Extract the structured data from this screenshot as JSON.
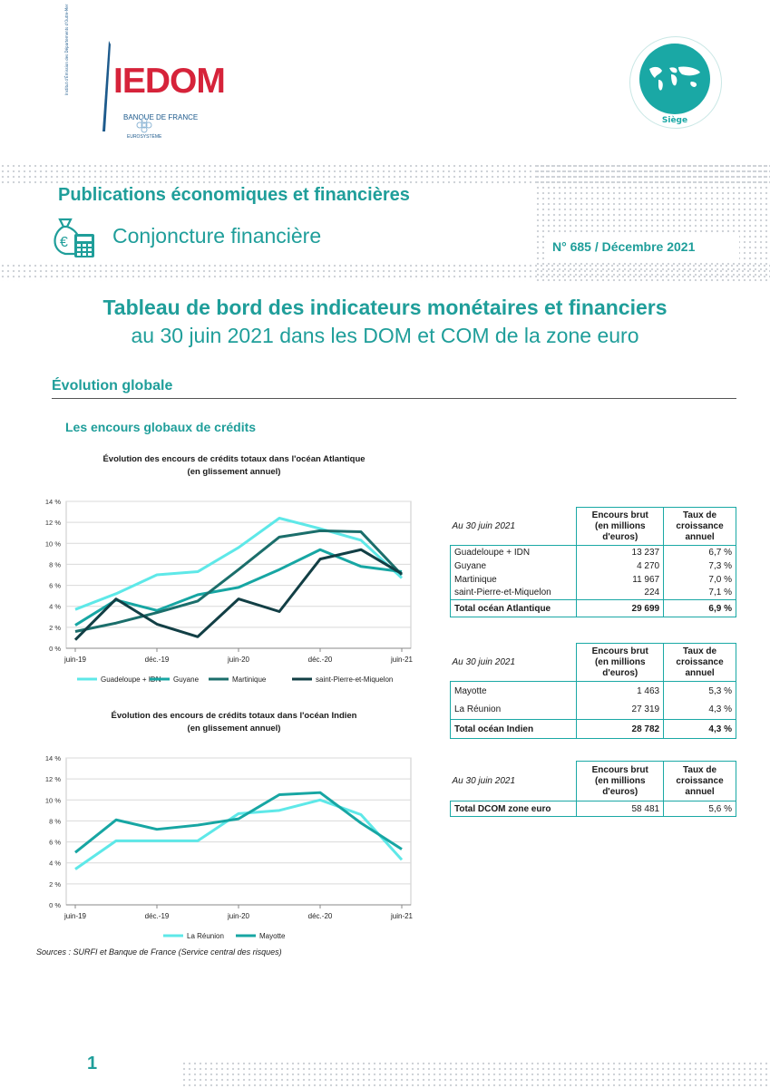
{
  "logo": {
    "name": "IEDOM",
    "tagline": "BANQUE DE FRANCE",
    "sub": "EUROSYSTÈME",
    "vertical": "Institut d'Émission des Départements d'Outre-Mer"
  },
  "seal": {
    "label": "Siège"
  },
  "header": {
    "publication": "Publications économiques et financières",
    "series": "Conjoncture financière",
    "issue": "N° 685 / Décembre 2021"
  },
  "title": {
    "main": "Tableau de bord des indicateurs monétaires et financiers",
    "sub": "au 30 juin 2021 dans les DOM et COM de la zone euro"
  },
  "section": {
    "heading": "Évolution globale",
    "subheading": "Les encours globaux de crédits"
  },
  "colors": {
    "teal": "#1f9e9a",
    "light_teal": "#5ee8e8",
    "mid_teal": "#17a6a3",
    "dark_teal": "#1b6e6b",
    "navy_teal": "#123f45"
  },
  "chart_data": [
    {
      "type": "line",
      "title": "Évolution des encours de crédits totaux dans l'océan Atlantique",
      "subtitle": "(en glissement annuel)",
      "x": [
        "juin-19",
        "sept.-19",
        "déc.-19",
        "mars-20",
        "juin-20",
        "sept.-20",
        "déc.-20",
        "mars-21",
        "juin-21"
      ],
      "x_tick_labels": [
        "juin-19",
        "déc.-19",
        "juin-20",
        "déc.-20",
        "juin-21"
      ],
      "y_tick_labels": [
        "0 %",
        "2 %",
        "4 %",
        "6 %",
        "8 %",
        "10 %",
        "12 %",
        "14 %"
      ],
      "ylim": [
        0,
        14
      ],
      "grid": true,
      "legend_position": "bottom",
      "series": [
        {
          "name": "Guadeloupe  + IDN",
          "values": [
            3.7,
            5.2,
            7.0,
            7.3,
            9.6,
            12.4,
            11.4,
            10.3,
            6.7
          ]
        },
        {
          "name": "Guyane",
          "values": [
            2.2,
            4.6,
            3.6,
            5.1,
            5.8,
            7.5,
            9.4,
            7.8,
            7.3
          ]
        },
        {
          "name": "Martinique",
          "values": [
            1.6,
            2.4,
            3.4,
            4.5,
            7.5,
            10.6,
            11.2,
            11.1,
            7.0
          ]
        },
        {
          "name": "saint-Pierre-et-Miquelon",
          "values": [
            0.8,
            4.7,
            2.3,
            1.1,
            4.7,
            3.5,
            8.5,
            9.4,
            7.1
          ]
        }
      ]
    },
    {
      "type": "line",
      "title": "Évolution des encours de crédits totaux dans l'océan Indien",
      "subtitle": "(en glissement annuel)",
      "x": [
        "juin-19",
        "sept.-19",
        "déc.-19",
        "mars-20",
        "juin-20",
        "sept.-20",
        "déc.-20",
        "mars-21",
        "juin-21"
      ],
      "x_tick_labels": [
        "juin-19",
        "déc.-19",
        "juin-20",
        "déc.-20",
        "juin-21"
      ],
      "y_tick_labels": [
        "0 %",
        "2 %",
        "4 %",
        "6 %",
        "8 %",
        "10 %",
        "12 %",
        "14 %"
      ],
      "ylim": [
        0,
        14
      ],
      "grid": true,
      "legend_position": "bottom",
      "series": [
        {
          "name": "La Réunion",
          "values": [
            3.4,
            6.1,
            6.1,
            6.1,
            8.7,
            9.0,
            10.0,
            8.6,
            4.3
          ]
        },
        {
          "name": "Mayotte",
          "values": [
            5.0,
            8.1,
            7.2,
            7.6,
            8.2,
            10.5,
            10.7,
            7.8,
            5.3
          ]
        }
      ]
    },
    {
      "type": "table",
      "date_label": "Au 30 juin 2021",
      "col1": "Encours brut (en millions d'euros)",
      "col2": "Taux de croissance annuel",
      "rows": [
        {
          "label": "Guadeloupe   + IDN",
          "encours": "13 237",
          "taux": "6,7 %"
        },
        {
          "label": "Guyane",
          "encours": "4 270",
          "taux": "7,3 %"
        },
        {
          "label": "Martinique",
          "encours": "11 967",
          "taux": "7,0 %"
        },
        {
          "label": "saint-Pierre-et-Miquelon",
          "encours": "224",
          "taux": "7,1 %"
        }
      ],
      "total": {
        "label": "Total océan Atlantique",
        "encours": "29 699",
        "taux": "6,9 %"
      }
    },
    {
      "type": "table",
      "date_label": "Au 30 juin 2021",
      "col1": "Encours brut (en millions d'euros)",
      "col2": "Taux de croissance annuel",
      "rows": [
        {
          "label": "Mayotte",
          "encours": "1 463",
          "taux": "5,3 %"
        },
        {
          "label": "La Réunion",
          "encours": "27 319",
          "taux": "4,3 %"
        }
      ],
      "total": {
        "label": "Total océan Indien",
        "encours": "28 782",
        "taux": "4,3 %"
      }
    },
    {
      "type": "table",
      "date_label": "Au 30 juin 2021",
      "col1": "Encours brut (en millions d'euros)",
      "col2": "Taux de croissance annuel",
      "rows": [],
      "total": {
        "label": "Total DCOM zone euro",
        "encours": "58 481",
        "taux": "5,6 %"
      }
    }
  ],
  "chart_head": {
    "col1": [
      "Encours brut",
      "(en millions",
      "d'euros)"
    ],
    "col2": [
      "Taux de",
      "croissance",
      "annuel"
    ]
  },
  "sources": "Sources : SURFI et Banque de France (Service central des risques)",
  "page_number": "1"
}
